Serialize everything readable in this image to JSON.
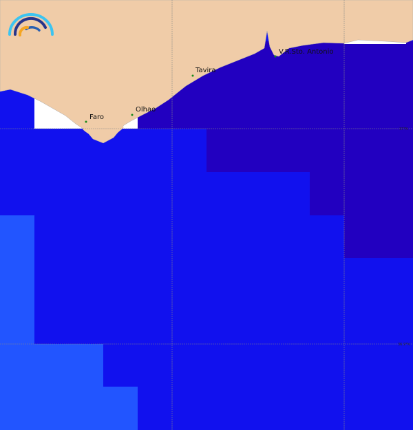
{
  "map": {
    "colors": {
      "land": "#f0cca8",
      "deep": "#2200c0",
      "mid": "#1111ee",
      "light": "#2255ff",
      "nodata": "#ffffff",
      "grid": "#888888",
      "town_marker": "#1a8a1a"
    },
    "towns": [
      {
        "name": "Faro"
      },
      {
        "name": "Olhao"
      },
      {
        "name": "Tavira"
      },
      {
        "name": "V.R.Sto. Antonio"
      }
    ],
    "grid_labels": [
      "37°N",
      "36.9°N"
    ],
    "logo": "rainbow-wave-logo"
  }
}
